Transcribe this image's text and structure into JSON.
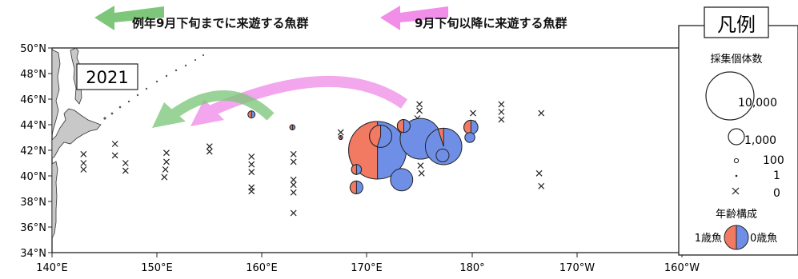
{
  "header": {
    "early_label": "例年9月下旬までに来遊する魚群",
    "late_label": "9月下旬以降に来遊する魚群"
  },
  "year_label": "2021",
  "axes": {
    "lat_ticks": [
      "50°N",
      "48°N",
      "46°N",
      "44°N",
      "42°N",
      "40°N",
      "38°N",
      "36°N",
      "34°N"
    ],
    "lon_ticks": [
      "140°E",
      "150°E",
      "160°E",
      "170°E",
      "180°",
      "170°W",
      "160°W"
    ]
  },
  "legend": {
    "title": "凡例",
    "count_title": "採集個体数",
    "size_labels": [
      "10,000",
      "1,000",
      "100",
      "1",
      "0"
    ],
    "age_title": "年齢構成",
    "age1_label": "1歳魚",
    "age0_label": "0歳魚"
  },
  "colors": {
    "age0": "#6f8fe6",
    "age1": "#f27a63",
    "land": "#c8c8c8",
    "arrow_early": "#7ec77a",
    "arrow_late": "#f08ee8"
  },
  "map_data": {
    "lon_range": [
      "140°E",
      "160°W"
    ],
    "lat_range": [
      "34°N",
      "50°N"
    ],
    "catch_sites": [
      {
        "lon": 171.0,
        "lat": 42.0,
        "count": 10000,
        "age1_share": 0.5
      },
      {
        "lon": 171.3,
        "lat": 43.1,
        "count": 1500,
        "age1_share": 0.45
      },
      {
        "lon": 175.1,
        "lat": 42.9,
        "count": 5000,
        "age1_share": 0.0
      },
      {
        "lon": 179.9,
        "lat": 43.8,
        "count": 600,
        "age1_share": 0.5
      },
      {
        "lon": 179.8,
        "lat": 43.0,
        "count": 300,
        "age1_share": 0.0
      },
      {
        "lon": 177.3,
        "lat": 42.3,
        "count": 4000,
        "age1_share": 0.05
      },
      {
        "lon": 177.2,
        "lat": 41.6,
        "count": 500,
        "age1_share": 0.0
      },
      {
        "lon": 173.5,
        "lat": 43.9,
        "count": 500,
        "age1_share": 0.5
      },
      {
        "lon": 173.3,
        "lat": 39.7,
        "count": 1500,
        "age1_share": 0.0
      },
      {
        "lon": 169.0,
        "lat": 40.5,
        "count": 300,
        "age1_share": 0.5
      },
      {
        "lon": 169.0,
        "lat": 39.1,
        "count": 500,
        "age1_share": 0.5
      },
      {
        "lon": 159.0,
        "lat": 44.8,
        "count": 150,
        "age1_share": 0.5
      },
      {
        "lon": 162.9,
        "lat": 43.8,
        "count": 80,
        "age1_share": 0.5
      },
      {
        "lon": 167.5,
        "lat": 43.0,
        "count": 40,
        "age1_share": 0.6
      }
    ],
    "zero_catch_sites": [
      [
        143.0,
        41.7
      ],
      [
        143.0,
        41.0
      ],
      [
        143.0,
        40.5
      ],
      [
        146.0,
        42.5
      ],
      [
        146.0,
        41.6
      ],
      [
        147.0,
        41.0
      ],
      [
        147.0,
        40.4
      ],
      [
        150.9,
        41.8
      ],
      [
        150.9,
        41.1
      ],
      [
        150.8,
        40.5
      ],
      [
        150.7,
        39.9
      ],
      [
        155.0,
        42.3
      ],
      [
        155.0,
        41.9
      ],
      [
        159.0,
        41.5
      ],
      [
        159.0,
        40.9
      ],
      [
        159.0,
        40.3
      ],
      [
        159.0,
        39.1
      ],
      [
        159.0,
        38.8
      ],
      [
        163.0,
        41.7
      ],
      [
        163.0,
        41.1
      ],
      [
        163.0,
        39.7
      ],
      [
        163.0,
        39.3
      ],
      [
        163.0,
        38.7
      ],
      [
        163.0,
        37.1
      ],
      [
        167.5,
        43.4
      ],
      [
        175.0,
        45.6
      ],
      [
        175.0,
        45.1
      ],
      [
        174.8,
        44.5
      ],
      [
        175.1,
        40.8
      ],
      [
        175.2,
        40.2
      ],
      [
        180.1,
        44.9
      ],
      [
        180.1,
        44.1
      ],
      [
        182.8,
        45.6
      ],
      [
        182.8,
        45.0
      ],
      [
        182.8,
        44.4
      ],
      [
        186.6,
        44.9
      ],
      [
        186.4,
        40.2
      ],
      [
        186.6,
        39.2
      ]
    ]
  }
}
